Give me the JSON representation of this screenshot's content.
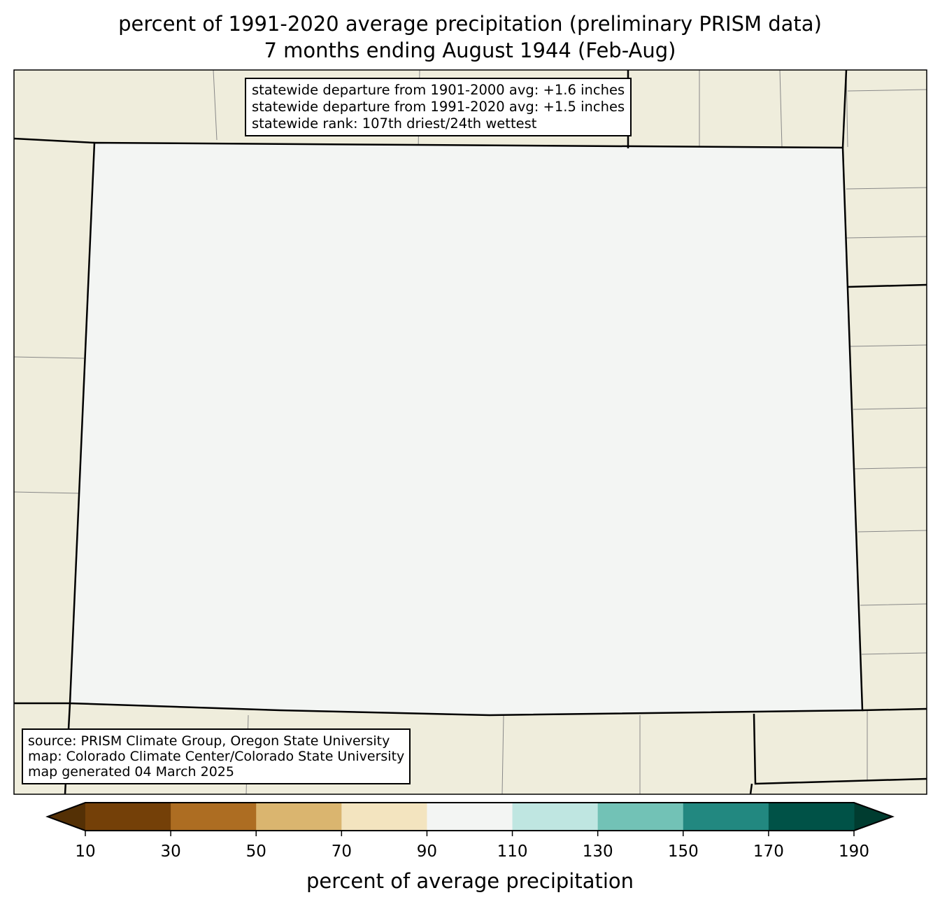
{
  "title": {
    "line1": "percent of 1991-2020 average precipitation (preliminary PRISM data)",
    "line2": "7 months ending August 1944 (Feb-Aug)"
  },
  "stats_box": {
    "line1": "statewide departure from 1901-2000 avg: +1.6 inches",
    "line2": "statewide departure from 1991-2020 avg: +1.5 inches",
    "line3": "statewide rank: 107th driest/24th wettest"
  },
  "source_box": {
    "line1": "source: PRISM Climate Group, Oregon State University",
    "line2": "map: Colorado Climate Center/Colorado State University",
    "line3": "map generated 04 March 2025"
  },
  "colorbar": {
    "label": "percent of average precipitation",
    "ticks": [
      "10",
      "30",
      "50",
      "70",
      "90",
      "110",
      "130",
      "150",
      "170",
      "190"
    ],
    "under_color": "#543005",
    "over_color": "#003c30",
    "colors": [
      "#744008",
      "#ad6d22",
      "#dab56f",
      "#f3e4bf",
      "#f3f5f3",
      "#bfe6e1",
      "#72c2b6",
      "#228880",
      "#005247"
    ]
  },
  "colors": {
    "land": "#efeddc",
    "state_border": "#000000",
    "county_border": "#808080"
  }
}
